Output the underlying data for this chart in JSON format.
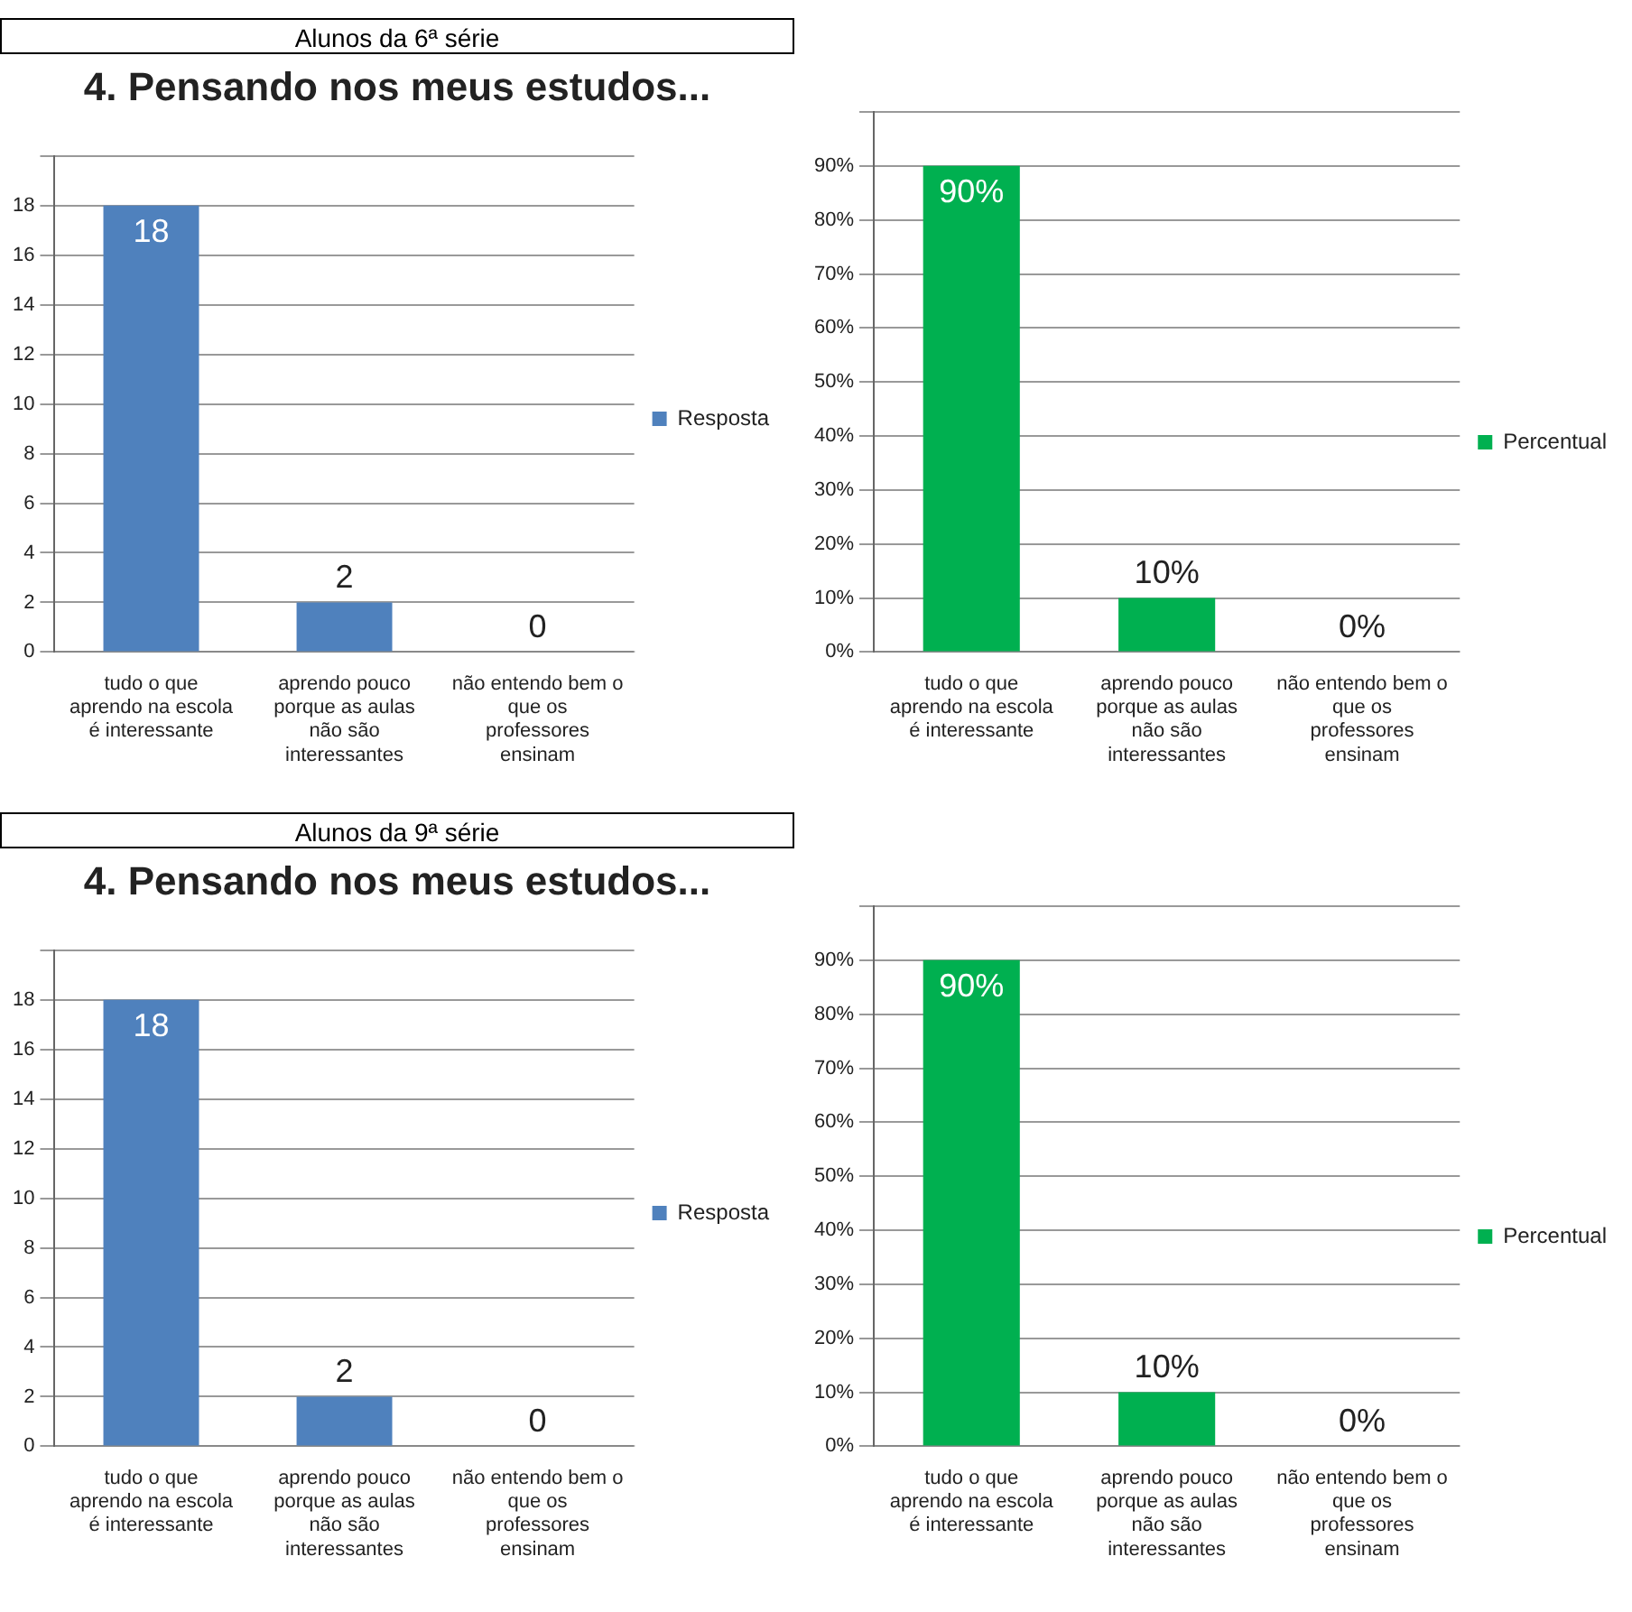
{
  "chart_data": [
    {
      "type": "bar",
      "subtitle": "Alunos da 6ª série",
      "title": "4. Pensando nos meus estudos...",
      "categories": [
        "tudo o que aprendo na escola é interessante",
        "aprendo pouco porque as aulas não são interessantes",
        "não entendo bem o que os professores ensinam"
      ],
      "series": [
        {
          "name": "Resposta",
          "color": "#4f81bd",
          "values": [
            18,
            2,
            0
          ]
        }
      ],
      "ylim": [
        0,
        20
      ],
      "yticks": [
        0,
        2,
        4,
        6,
        8,
        10,
        12,
        14,
        16,
        18,
        {
          "value": 20,
          "label": null
        }
      ],
      "grid": "y",
      "legend": "right",
      "data_labels": true
    },
    {
      "type": "bar",
      "categories": [
        "tudo o que aprendo na escola é interessante",
        "aprendo pouco porque as aulas não são interessantes",
        "não entendo bem o que os professores ensinam"
      ],
      "series": [
        {
          "name": "Percentual",
          "color": "#00b050",
          "values": [
            90,
            10,
            0
          ],
          "value_labels": [
            "90%",
            "10%",
            "0%"
          ]
        }
      ],
      "ylim": [
        0,
        100
      ],
      "yticks": [
        {
          "value": 0,
          "label": "0%"
        },
        {
          "value": 10,
          "label": "10%"
        },
        {
          "value": 20,
          "label": "20%"
        },
        {
          "value": 30,
          "label": "30%"
        },
        {
          "value": 40,
          "label": "40%"
        },
        {
          "value": 50,
          "label": "50%"
        },
        {
          "value": 60,
          "label": "60%"
        },
        {
          "value": 70,
          "label": "70%"
        },
        {
          "value": 80,
          "label": "80%"
        },
        {
          "value": 90,
          "label": "90%"
        },
        {
          "value": 100,
          "label": null
        }
      ],
      "grid": "y",
      "legend": "right"
    },
    {
      "type": "bar",
      "subtitle": "Alunos da 9ª série",
      "title": "4. Pensando nos meus estudos...",
      "categories": [
        "tudo o que aprendo na escola é interessante",
        "aprendo pouco porque as aulas não são interessantes",
        "não entendo bem o que os professores ensinam"
      ],
      "series": [
        {
          "name": "Resposta",
          "color": "#4f81bd",
          "values": [
            18,
            2,
            0
          ]
        }
      ],
      "ylim": [
        0,
        20
      ],
      "yticks": [
        0,
        2,
        4,
        6,
        8,
        10,
        12,
        14,
        16,
        18,
        {
          "value": 20,
          "label": null
        }
      ],
      "grid": "y",
      "legend": "right",
      "data_labels": true
    },
    {
      "type": "bar",
      "categories": [
        "tudo o que aprendo na escola é interessante",
        "aprendo pouco porque as aulas não são interessantes",
        "não entendo bem o que os professores ensinam"
      ],
      "series": [
        {
          "name": "Percentual",
          "color": "#00b050",
          "values": [
            90,
            10,
            0
          ],
          "value_labels": [
            "90%",
            "10%",
            "0%"
          ]
        }
      ],
      "ylim": [
        0,
        100
      ],
      "yticks": [
        {
          "value": 0,
          "label": "0%"
        },
        {
          "value": 10,
          "label": "10%"
        },
        {
          "value": 20,
          "label": "20%"
        },
        {
          "value": 30,
          "label": "30%"
        },
        {
          "value": 40,
          "label": "40%"
        },
        {
          "value": 50,
          "label": "50%"
        },
        {
          "value": 60,
          "label": "60%"
        },
        {
          "value": 70,
          "label": "70%"
        },
        {
          "value": 80,
          "label": "80%"
        },
        {
          "value": 90,
          "label": "90%"
        },
        {
          "value": 100,
          "label": null
        }
      ],
      "grid": "y",
      "legend": "right"
    }
  ]
}
